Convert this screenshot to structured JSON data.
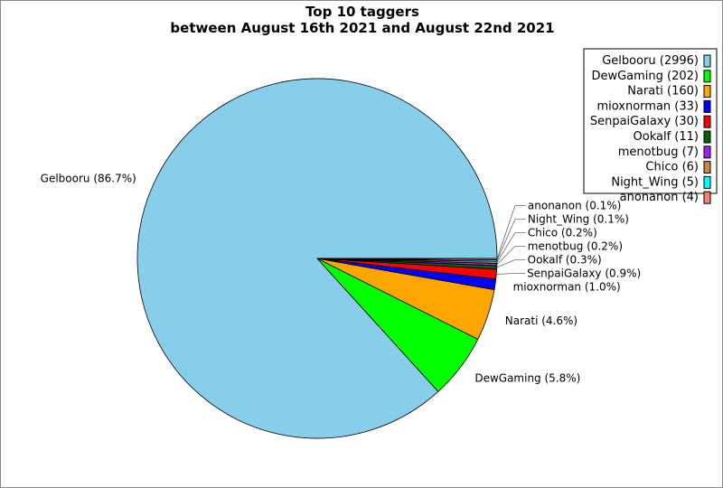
{
  "chart_data": {
    "type": "pie",
    "title": "Top 10 taggers",
    "subtitle": "between August 16th 2021 and August 22nd 2021",
    "start_angle_deg": 0,
    "direction": "counterclockwise",
    "legend_position": "top-right",
    "slices": [
      {
        "label": "Gelbooru",
        "value": 2996,
        "percent_label": "86.7%",
        "color": "#87ceeb"
      },
      {
        "label": "DewGaming",
        "value": 202,
        "percent_label": "5.8%",
        "color": "#00ff00"
      },
      {
        "label": "Narati",
        "value": 160,
        "percent_label": "4.6%",
        "color": "#ffa500"
      },
      {
        "label": "mioxnorman",
        "value": 33,
        "percent_label": "1.0%",
        "color": "#0000ff"
      },
      {
        "label": "SenpaiGalaxy",
        "value": 30,
        "percent_label": "0.9%",
        "color": "#ff0000"
      },
      {
        "label": "Ookalf",
        "value": 11,
        "percent_label": "0.3%",
        "color": "#006400"
      },
      {
        "label": "menotbug",
        "value": 7,
        "percent_label": "0.2%",
        "color": "#a020f0"
      },
      {
        "label": "Chico",
        "value": 6,
        "percent_label": "0.2%",
        "color": "#cd853f"
      },
      {
        "label": "Night_Wing",
        "value": 5,
        "percent_label": "0.1%",
        "color": "#00ffff"
      },
      {
        "label": "anonanon",
        "value": 4,
        "percent_label": "0.1%",
        "color": "#fa8072"
      }
    ]
  }
}
